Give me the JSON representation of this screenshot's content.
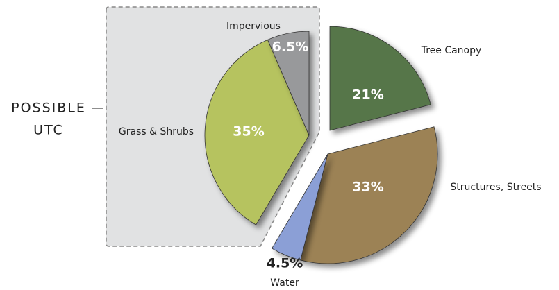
{
  "chart_data": {
    "type": "pie",
    "categories": [
      "Tree Canopy",
      "Structures, Streets",
      "Water",
      "Grass & Shrubs",
      "Impervious"
    ],
    "values": [
      21,
      33,
      4.5,
      35,
      6.5
    ],
    "value_labels": [
      "21%",
      "33%",
      "4.5%",
      "35%",
      "6.5%"
    ],
    "colors": [
      "#56764a",
      "#9c8255",
      "#8b9fd6",
      "#b6c35f",
      "#98999b"
    ],
    "annotation": {
      "lines": [
        "POSSIBLE",
        "UTC"
      ]
    }
  }
}
